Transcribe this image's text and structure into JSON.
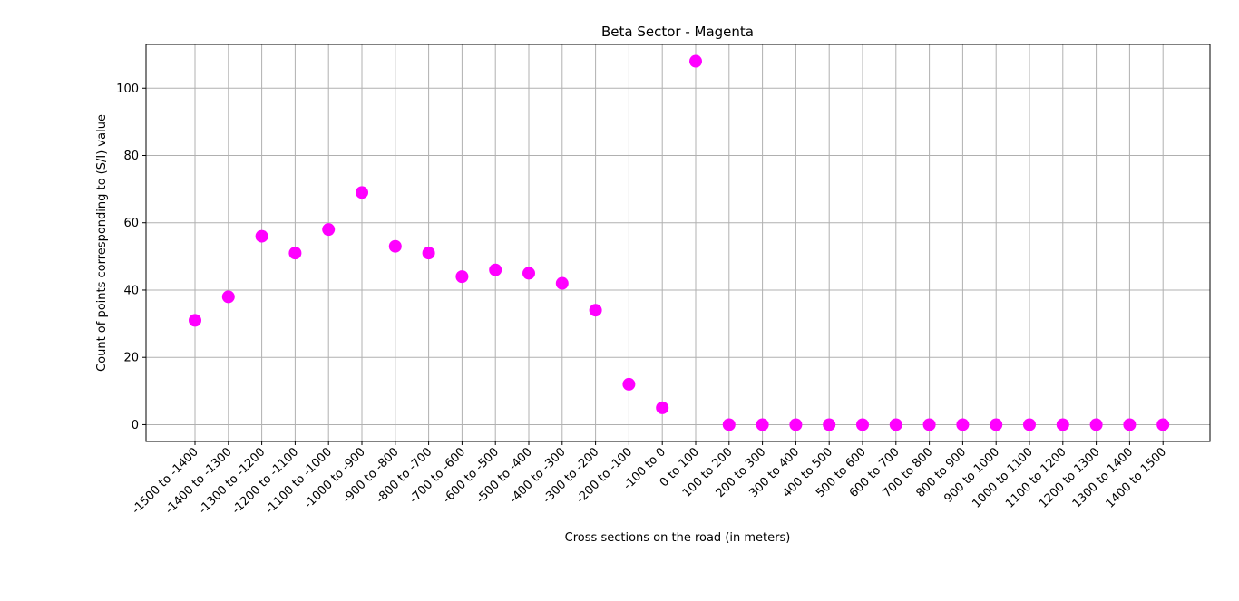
{
  "chart_data": {
    "type": "scatter",
    "title": "Beta Sector - Magenta",
    "xlabel": "Cross sections on the road (in meters)",
    "ylabel": "Count of points corresponding to (S/I) value",
    "categories": [
      "-1500 to -1400",
      "-1400 to -1300",
      "-1300 to -1200",
      "-1200 to -1100",
      "-1100 to -1000",
      "-1000 to -900",
      "-900 to -800",
      "-800 to -700",
      "-700 to -600",
      "-600 to -500",
      "-500 to -400",
      "-400 to -300",
      "-300 to -200",
      "-200 to -100",
      "-100 to 0",
      "0 to 100",
      "100 to 200",
      "200 to 300",
      "300 to 400",
      "400 to 500",
      "500 to 600",
      "600 to 700",
      "700 to 800",
      "800 to 900",
      "900 to 1000",
      "1000 to 1100",
      "1100 to 1200",
      "1200 to 1300",
      "1300 to 1400",
      "1400 to 1500"
    ],
    "values": [
      31,
      38,
      56,
      51,
      58,
      69,
      53,
      51,
      44,
      46,
      45,
      42,
      34,
      12,
      5,
      108,
      0,
      0,
      0,
      0,
      0,
      0,
      0,
      0,
      0,
      0,
      0,
      0,
      0,
      0
    ],
    "yticks": [
      0,
      20,
      40,
      60,
      80,
      100
    ],
    "ylim": [
      -5,
      113
    ],
    "grid": true,
    "marker_color": "#ff00ff"
  }
}
